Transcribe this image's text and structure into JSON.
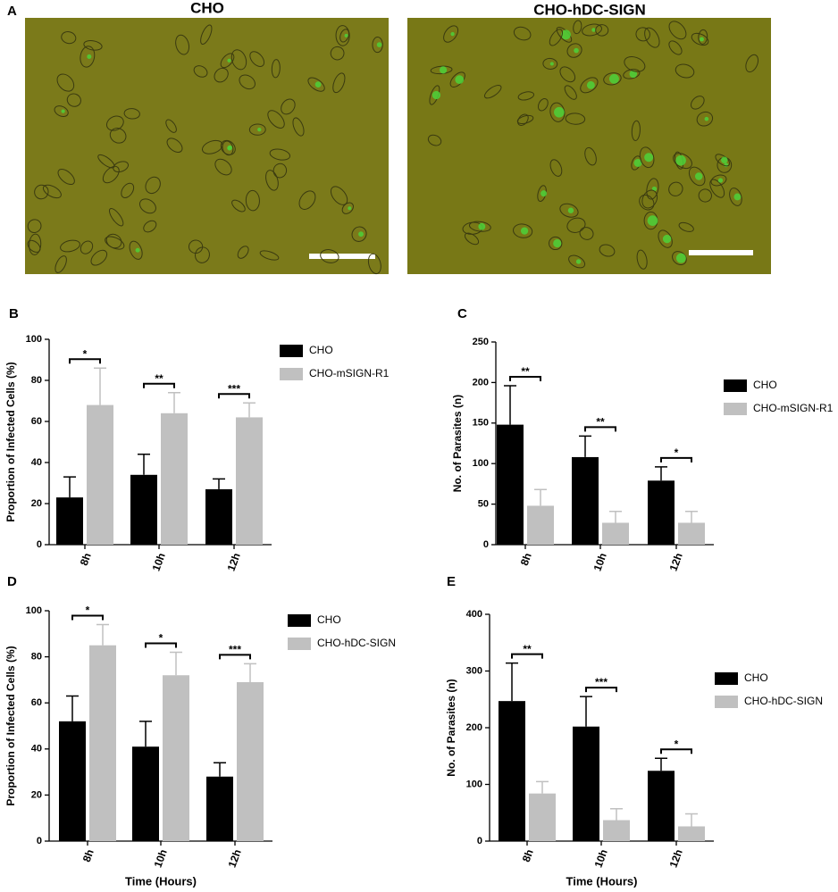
{
  "figure": {
    "panel_a": {
      "label": "A",
      "images": [
        {
          "title": "CHO"
        },
        {
          "title": "CHO-hDC-SIGN"
        }
      ]
    }
  },
  "chart_data": [
    {
      "type": "bar",
      "panel": "B",
      "ylabel": "Proportion of Infected Cells (%)",
      "categories": [
        "8h",
        "10h",
        "12h"
      ],
      "series": [
        {
          "name": "CHO",
          "color": "#000000",
          "values": [
            23,
            34,
            27
          ],
          "errors": [
            10,
            10,
            5
          ]
        },
        {
          "name": "CHO-mSIGN-R1",
          "color": "#c0c0c0",
          "values": [
            68,
            64,
            62
          ],
          "errors": [
            18,
            10,
            7
          ]
        }
      ],
      "significance": [
        "*",
        "**",
        "***"
      ],
      "ylim": [
        0,
        100
      ],
      "yticks": [
        0,
        20,
        40,
        60,
        80,
        100
      ]
    },
    {
      "type": "bar",
      "panel": "C",
      "ylabel": "No. of Parasites (n)",
      "categories": [
        "8h",
        "10h",
        "12h"
      ],
      "series": [
        {
          "name": "CHO",
          "color": "#000000",
          "values": [
            148,
            108,
            79
          ],
          "errors": [
            48,
            26,
            17
          ]
        },
        {
          "name": "CHO-mSIGN-R1",
          "color": "#c0c0c0",
          "values": [
            48,
            27,
            27
          ],
          "errors": [
            20,
            14,
            14
          ]
        }
      ],
      "significance": [
        "**",
        "**",
        "*"
      ],
      "ylim": [
        0,
        250
      ],
      "yticks": [
        0,
        50,
        100,
        150,
        200,
        250
      ]
    },
    {
      "type": "bar",
      "panel": "D",
      "ylabel": "Proportion of Infected Cells (%)",
      "xlabel": "Time (Hours)",
      "categories": [
        "8h",
        "10h",
        "12h"
      ],
      "series": [
        {
          "name": "CHO",
          "color": "#000000",
          "values": [
            52,
            41,
            28
          ],
          "errors": [
            11,
            11,
            6
          ]
        },
        {
          "name": "CHO-hDC-SIGN",
          "color": "#c0c0c0",
          "values": [
            85,
            72,
            69
          ],
          "errors": [
            9,
            10,
            8
          ]
        }
      ],
      "significance": [
        "*",
        "*",
        "***"
      ],
      "ylim": [
        0,
        100
      ],
      "yticks": [
        0,
        20,
        40,
        60,
        80,
        100
      ]
    },
    {
      "type": "bar",
      "panel": "E",
      "ylabel": "No. of Parasites (n)",
      "xlabel": "Time (Hours)",
      "categories": [
        "8h",
        "10h",
        "12h"
      ],
      "series": [
        {
          "name": "CHO",
          "color": "#000000",
          "values": [
            247,
            202,
            124
          ],
          "errors": [
            67,
            53,
            22
          ]
        },
        {
          "name": "CHO-hDC-SIGN",
          "color": "#c0c0c0",
          "values": [
            84,
            37,
            26
          ],
          "errors": [
            21,
            20,
            22
          ]
        }
      ],
      "significance": [
        "**",
        "***",
        "*"
      ],
      "ylim": [
        0,
        400
      ],
      "yticks": [
        0,
        100,
        200,
        300,
        400
      ]
    }
  ]
}
